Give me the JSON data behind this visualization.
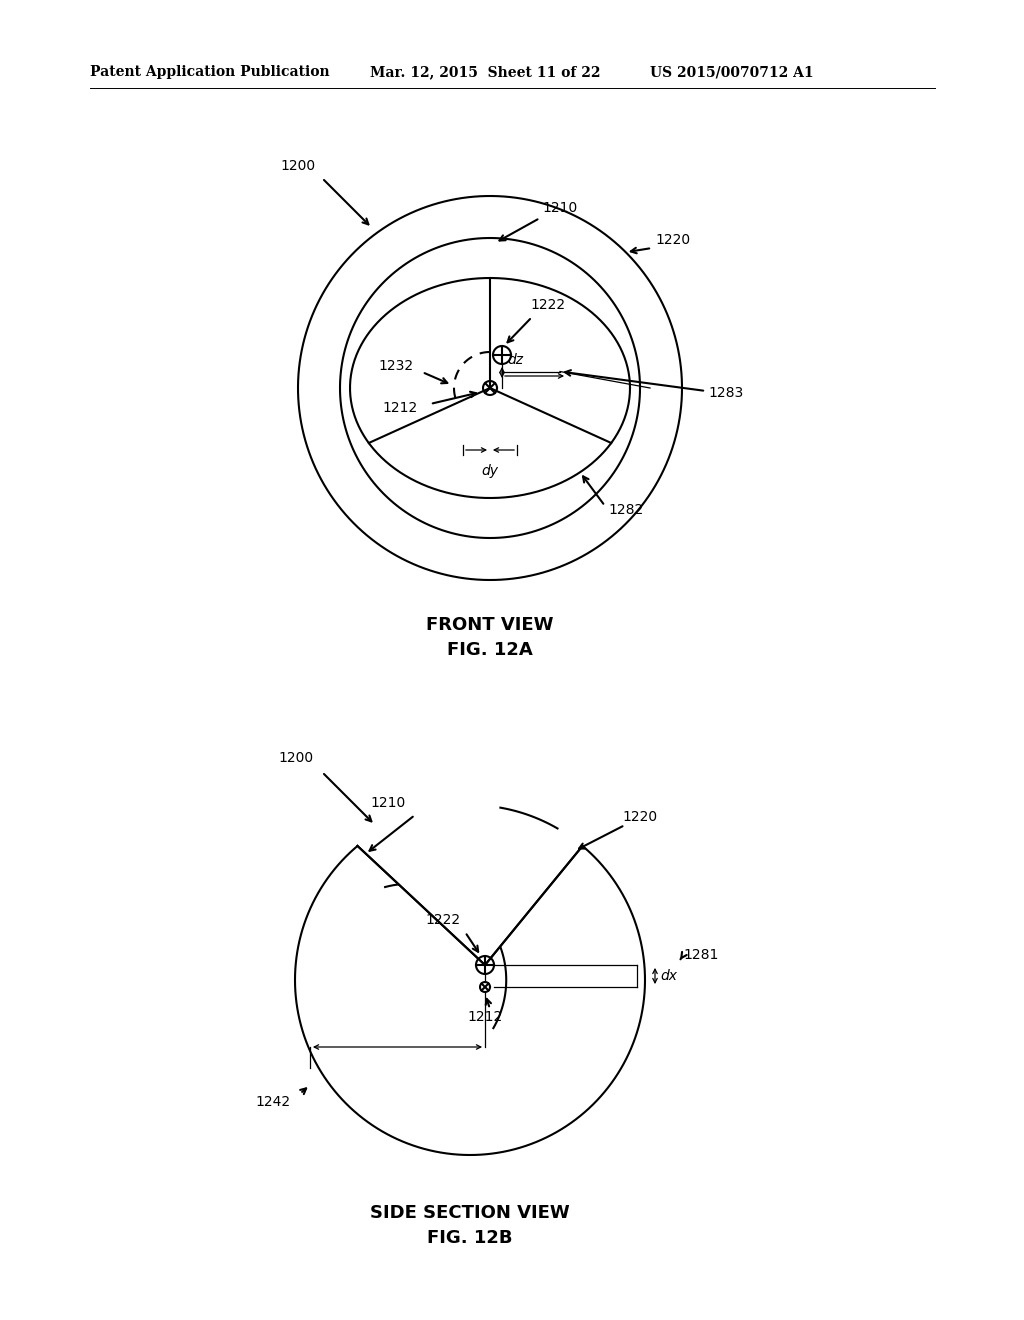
{
  "bg_color": "#ffffff",
  "line_color": "#000000",
  "header_text": "Patent Application Publication",
  "header_date": "Mar. 12, 2015  Sheet 11 of 22",
  "header_patent": "US 2015/0070712 A1",
  "fig_a_title_line1": "FRONT VIEW",
  "fig_a_title_line2": "FIG. 12A",
  "fig_b_title_line1": "SIDE SECTION VIEW",
  "fig_b_title_line2": "FIG. 12B",
  "label_1200_a": "1200",
  "label_1210_a": "1210",
  "label_1220_a": "1220",
  "label_1222_a": "1222",
  "label_1232_a": "1232",
  "label_1212_a": "1212",
  "label_1282_a": "1282",
  "label_1283_a": "1283",
  "label_dz": "dz",
  "label_dy": "dy",
  "label_1200_b": "1200",
  "label_1210_b": "1210",
  "label_1220_b": "1220",
  "label_1222_b": "1222",
  "label_1212_b": "1212",
  "label_1242_b": "1242",
  "label_1281_b": "1281",
  "label_dx": "dx"
}
